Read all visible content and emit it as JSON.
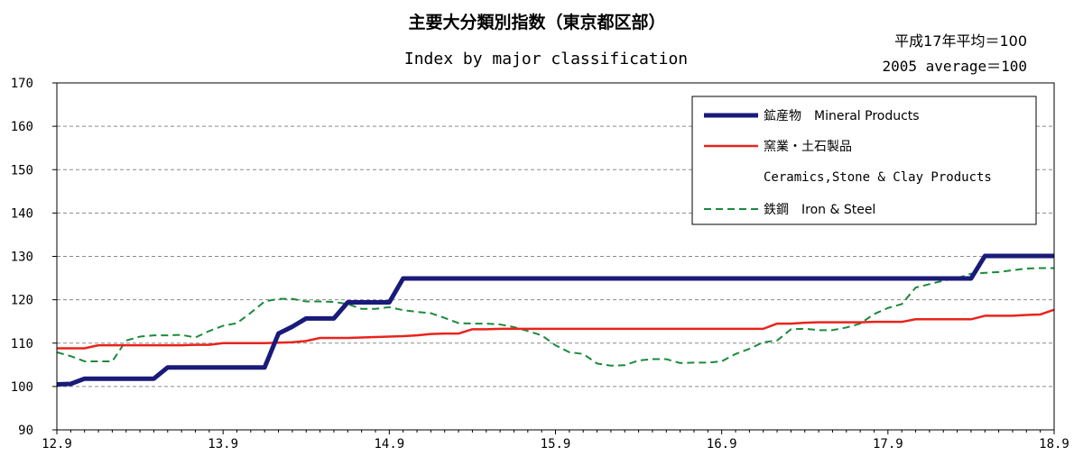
{
  "chart_data": {
    "type": "line",
    "title": "主要大分類別指数（東京都区部）",
    "subtitle": "Index by major classification",
    "base_note_jp": "平成17年平均＝100",
    "base_note_en": "2005 average＝100",
    "xlabel": "",
    "ylabel": "",
    "ylim": [
      90,
      170
    ],
    "yticks": [
      "90",
      "100",
      "110",
      "120",
      "130",
      "140",
      "150",
      "160",
      "170"
    ],
    "x_range": [
      0,
      72
    ],
    "xticks": [
      {
        "label": "12.9",
        "x": 0
      },
      {
        "label": "13.9",
        "x": 12
      },
      {
        "label": "14.9",
        "x": 24
      },
      {
        "label": "15.9",
        "x": 36
      },
      {
        "label": "16.9",
        "x": 48
      },
      {
        "label": "17.9",
        "x": 60
      },
      {
        "label": "18.9",
        "x": 72
      }
    ],
    "grid": true,
    "legend_position": "top-right",
    "series": [
      {
        "name": "鉱産物　Mineral Products",
        "color": "#1a1a7a",
        "style": "solid-thick",
        "values": [
          100.5,
          100.6,
          101.8,
          101.8,
          101.8,
          101.8,
          101.8,
          101.8,
          104.4,
          104.4,
          104.4,
          104.4,
          104.4,
          104.4,
          104.4,
          104.4,
          112.2,
          113.8,
          115.7,
          115.7,
          115.7,
          119.4,
          119.4,
          119.4,
          119.4,
          124.9,
          124.9,
          124.9,
          124.9,
          124.9,
          124.9,
          124.9,
          124.9,
          124.9,
          124.9,
          124.9,
          124.9,
          124.9,
          124.9,
          124.9,
          124.9,
          124.9,
          124.9,
          124.9,
          124.9,
          124.9,
          124.9,
          124.9,
          124.9,
          124.9,
          124.9,
          124.9,
          124.9,
          124.9,
          124.9,
          124.9,
          124.9,
          124.9,
          124.9,
          124.9,
          124.9,
          124.9,
          124.9,
          124.9,
          124.9,
          124.9,
          124.9,
          130.1,
          130.1,
          130.1,
          130.1,
          130.1,
          130.1
        ]
      },
      {
        "name": "窯業・土石製品",
        "name_line2": "Ceramics,Stone & Clay Products",
        "color": "#e8241c",
        "style": "solid",
        "values": [
          108.8,
          108.8,
          108.8,
          109.5,
          109.5,
          109.5,
          109.5,
          109.5,
          109.5,
          109.5,
          109.6,
          109.6,
          110.0,
          110.0,
          110.0,
          110.0,
          110.1,
          110.2,
          110.5,
          111.2,
          111.2,
          111.2,
          111.3,
          111.4,
          111.5,
          111.6,
          111.8,
          112.1,
          112.2,
          112.2,
          113.2,
          113.2,
          113.3,
          113.3,
          113.3,
          113.3,
          113.3,
          113.3,
          113.3,
          113.3,
          113.3,
          113.3,
          113.3,
          113.3,
          113.3,
          113.3,
          113.3,
          113.3,
          113.3,
          113.3,
          113.3,
          113.3,
          114.5,
          114.5,
          114.7,
          114.8,
          114.8,
          114.8,
          114.8,
          114.9,
          114.9,
          114.9,
          115.5,
          115.5,
          115.5,
          115.5,
          115.5,
          116.3,
          116.3,
          116.3,
          116.5,
          116.6,
          117.7
        ]
      },
      {
        "name": "鉄鋼　Iron & Steel",
        "color": "#1a8a3a",
        "style": "dashed",
        "values": [
          107.9,
          107.0,
          105.8,
          105.8,
          105.8,
          110.6,
          111.5,
          111.8,
          111.8,
          111.9,
          111.3,
          112.8,
          114.0,
          114.6,
          117.0,
          119.6,
          120.2,
          120.2,
          119.6,
          119.6,
          119.5,
          119.0,
          117.9,
          117.9,
          118.3,
          117.6,
          117.2,
          116.9,
          115.8,
          114.6,
          114.5,
          114.5,
          114.3,
          113.7,
          112.8,
          111.8,
          109.5,
          107.9,
          107.5,
          105.3,
          104.8,
          104.9,
          106.0,
          106.3,
          106.3,
          105.4,
          105.5,
          105.5,
          105.8,
          107.5,
          108.7,
          110.2,
          110.6,
          113.2,
          113.3,
          113.0,
          113.0,
          113.6,
          114.5,
          116.7,
          118.1,
          119.0,
          122.8,
          123.6,
          124.4,
          125.0,
          126.0,
          126.2,
          126.4,
          126.8,
          127.2,
          127.3,
          127.3
        ]
      }
    ]
  }
}
